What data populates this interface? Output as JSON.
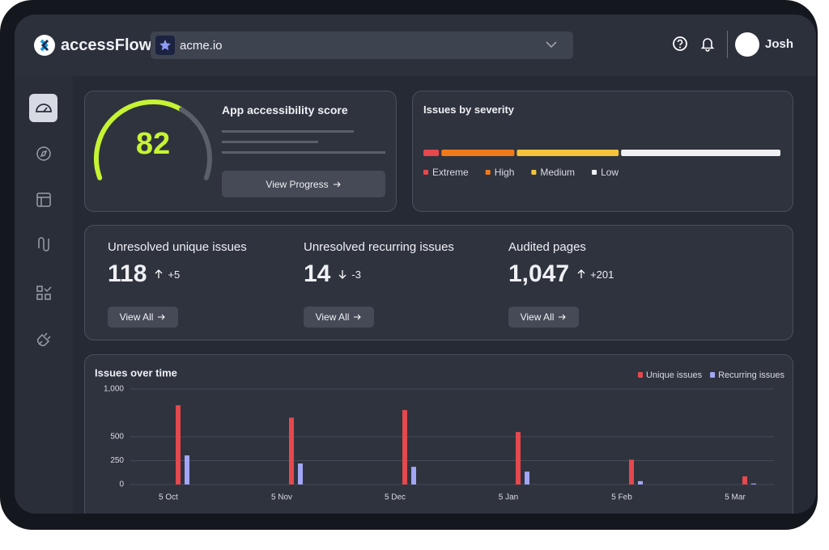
{
  "header": {
    "brand": "accessFlow",
    "site": "acme.io",
    "user": "Josh"
  },
  "score": {
    "value": "82",
    "title": "App accessibility score",
    "button": "View Progress"
  },
  "severity": {
    "title": "Issues by severity",
    "segments": [
      {
        "name": "Extreme",
        "color": "#e5484d",
        "value": 5
      },
      {
        "name": "High",
        "color": "#f07a1a",
        "value": 21
      },
      {
        "name": "Medium",
        "color": "#f5c33b",
        "value": 29
      },
      {
        "name": "Low",
        "color": "#eef0f4",
        "value": 45
      }
    ]
  },
  "stats": [
    {
      "label": "Unresolved unique issues",
      "value": "118",
      "delta": "+5",
      "button": "View All"
    },
    {
      "label": "Unresolved recurring issues",
      "value": "14",
      "delta": "-3",
      "button": "View All"
    },
    {
      "label": "Audited pages",
      "value": "1,047",
      "delta": "+201",
      "button": "View All"
    }
  ],
  "chart_data": {
    "type": "bar",
    "title": "Issues over time",
    "categories": [
      "5 Oct",
      "5 Nov",
      "5 Dec",
      "5 Jan",
      "5 Feb",
      "5 Mar"
    ],
    "series": [
      {
        "name": "Unique issues",
        "color": "#e5484d",
        "values": [
          830,
          700,
          780,
          550,
          260,
          85
        ]
      },
      {
        "name": "Recurring issues",
        "color": "#a3a6f5",
        "values": [
          305,
          220,
          185,
          135,
          35,
          10
        ]
      }
    ],
    "ylim": [
      0,
      1000
    ],
    "yticks": [
      0,
      250,
      500,
      {
        "value": 1000,
        "label": "1,000"
      }
    ],
    "grid": true,
    "legend": "top-right"
  }
}
